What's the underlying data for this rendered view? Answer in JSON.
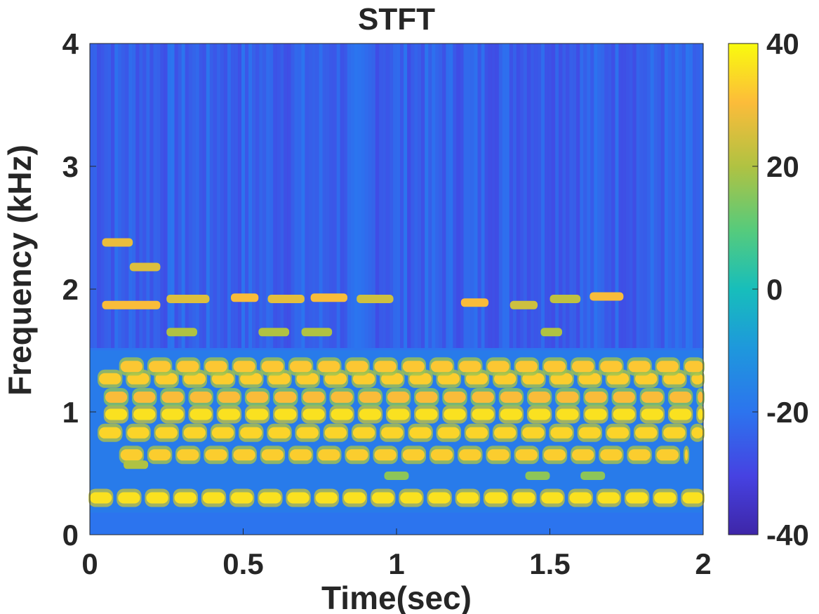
{
  "chart_data": {
    "type": "heatmap",
    "title": "STFT",
    "xlabel": "Time(sec)",
    "ylabel": "Frequency (kHz)",
    "xlim": [
      0,
      2
    ],
    "ylim": [
      0,
      4
    ],
    "xticks": [
      0,
      0.5,
      1,
      1.5,
      2
    ],
    "xtick_labels": [
      "0",
      "0.5",
      "1",
      "1.5",
      "2"
    ],
    "yticks": [
      0,
      1,
      2,
      3,
      4
    ],
    "ytick_labels": [
      "0",
      "1",
      "2",
      "3",
      "4"
    ],
    "colorbar": {
      "clim": [
        -40,
        40
      ],
      "ticks": [
        -40,
        -20,
        0,
        20,
        40
      ],
      "tick_labels": [
        "-40",
        "-20",
        "0",
        "20",
        "40"
      ],
      "colormap": "parula"
    },
    "colors": {
      "low": "#3e26a8",
      "background": "#2c74ee",
      "mid": "#17bebb",
      "high": "#f9fb0e"
    },
    "background_level_db": -24,
    "harmonic_bands": [
      {
        "freq_khz": 0.3,
        "t_start": 0.0,
        "t_end": 2.0,
        "level_db": 36
      },
      {
        "freq_khz": 0.65,
        "t_start": 0.1,
        "t_end": 1.95,
        "level_db": 33
      },
      {
        "freq_khz": 0.83,
        "t_start": 0.03,
        "t_end": 2.0,
        "level_db": 34
      },
      {
        "freq_khz": 0.98,
        "t_start": 0.05,
        "t_end": 2.0,
        "level_db": 36
      },
      {
        "freq_khz": 1.12,
        "t_start": 0.05,
        "t_end": 2.0,
        "level_db": 30
      },
      {
        "freq_khz": 1.27,
        "t_start": 0.03,
        "t_end": 2.0,
        "level_db": 33
      },
      {
        "freq_khz": 1.37,
        "t_start": 0.1,
        "t_end": 2.0,
        "level_db": 32
      }
    ],
    "note_segments": [
      {
        "freq_khz": 2.38,
        "t_start": 0.04,
        "t_end": 0.14,
        "level_db": 28
      },
      {
        "freq_khz": 2.18,
        "t_start": 0.13,
        "t_end": 0.23,
        "level_db": 26
      },
      {
        "freq_khz": 1.87,
        "t_start": 0.04,
        "t_end": 0.23,
        "level_db": 30
      },
      {
        "freq_khz": 1.92,
        "t_start": 0.25,
        "t_end": 0.39,
        "level_db": 26
      },
      {
        "freq_khz": 1.93,
        "t_start": 0.46,
        "t_end": 0.55,
        "level_db": 30
      },
      {
        "freq_khz": 1.92,
        "t_start": 0.58,
        "t_end": 0.7,
        "level_db": 27
      },
      {
        "freq_khz": 1.93,
        "t_start": 0.72,
        "t_end": 0.84,
        "level_db": 30
      },
      {
        "freq_khz": 1.92,
        "t_start": 0.87,
        "t_end": 0.99,
        "level_db": 24
      },
      {
        "freq_khz": 1.89,
        "t_start": 1.21,
        "t_end": 1.3,
        "level_db": 30
      },
      {
        "freq_khz": 1.87,
        "t_start": 1.37,
        "t_end": 1.46,
        "level_db": 24
      },
      {
        "freq_khz": 1.92,
        "t_start": 1.5,
        "t_end": 1.6,
        "level_db": 22
      },
      {
        "freq_khz": 1.94,
        "t_start": 1.63,
        "t_end": 1.74,
        "level_db": 30
      },
      {
        "freq_khz": 1.65,
        "t_start": 0.25,
        "t_end": 0.35,
        "level_db": 20
      },
      {
        "freq_khz": 1.65,
        "t_start": 0.55,
        "t_end": 0.65,
        "level_db": 20
      },
      {
        "freq_khz": 1.65,
        "t_start": 0.69,
        "t_end": 0.79,
        "level_db": 20
      },
      {
        "freq_khz": 1.65,
        "t_start": 1.47,
        "t_end": 1.54,
        "level_db": 20
      },
      {
        "freq_khz": 0.57,
        "t_start": 0.11,
        "t_end": 0.19,
        "level_db": 20
      },
      {
        "freq_khz": 0.48,
        "t_start": 0.96,
        "t_end": 1.04,
        "level_db": 16
      },
      {
        "freq_khz": 0.48,
        "t_start": 1.42,
        "t_end": 1.5,
        "level_db": 16
      },
      {
        "freq_khz": 0.48,
        "t_start": 1.6,
        "t_end": 1.68,
        "level_db": 16
      }
    ]
  }
}
